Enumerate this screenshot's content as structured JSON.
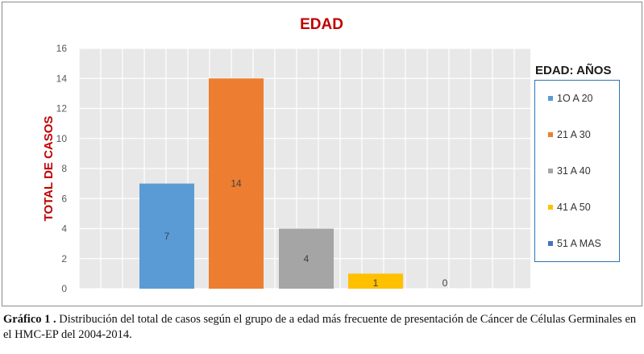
{
  "chart_data": {
    "type": "bar",
    "title": "EDAD",
    "ylabel": "TOTAL DE CASOS",
    "xlabel": "",
    "ylim": [
      0,
      16
    ],
    "yticks": [
      0,
      2,
      4,
      6,
      8,
      10,
      12,
      14,
      16
    ],
    "grid": true,
    "legend_title": "EDAD: AÑOS",
    "legend_position": "right",
    "categories": [
      "1O A 20",
      "21 A 30",
      "31 A 40",
      "41 A 50",
      "51 A MAS"
    ],
    "values": [
      7,
      14,
      4,
      1,
      0
    ],
    "colors": [
      "#5b9bd5",
      "#ed7d31",
      "#a5a5a5",
      "#ffc000",
      "#4472c4"
    ],
    "title_color": "#c00000",
    "ylabel_color": "#c00000",
    "plot_background": "#e8e8e8"
  },
  "caption": {
    "label": "Gráfico 1 .",
    "text": " Distribución del total de casos según el grupo de a edad más frecuente de presentación de Cáncer de Células Germinales en el HMC-EP  del 2004-2014."
  }
}
